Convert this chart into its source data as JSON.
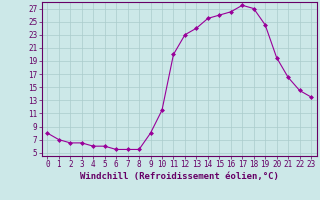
{
  "x": [
    0,
    1,
    2,
    3,
    4,
    5,
    6,
    7,
    8,
    9,
    10,
    11,
    12,
    13,
    14,
    15,
    16,
    17,
    18,
    19,
    20,
    21,
    22,
    23
  ],
  "y": [
    8,
    7,
    6.5,
    6.5,
    6,
    6,
    5.5,
    5.5,
    5.5,
    8,
    11.5,
    20,
    23,
    24,
    25.5,
    26,
    26.5,
    27.5,
    27,
    24.5,
    19.5,
    16.5,
    14.5,
    13.5
  ],
  "line_color": "#990099",
  "marker": "D",
  "marker_size": 2,
  "bg_color": "#cce8e8",
  "grid_color": "#aacccc",
  "xlabel": "Windchill (Refroidissement éolien,°C)",
  "xlabel_color": "#660066",
  "xlabel_fontsize": 6.5,
  "ylabel_ticks": [
    5,
    7,
    9,
    11,
    13,
    15,
    17,
    19,
    21,
    23,
    25,
    27
  ],
  "ylim": [
    4.5,
    28
  ],
  "xlim": [
    -0.5,
    23.5
  ],
  "tick_fontsize": 5.5,
  "tick_color": "#660066",
  "spine_color": "#660066"
}
